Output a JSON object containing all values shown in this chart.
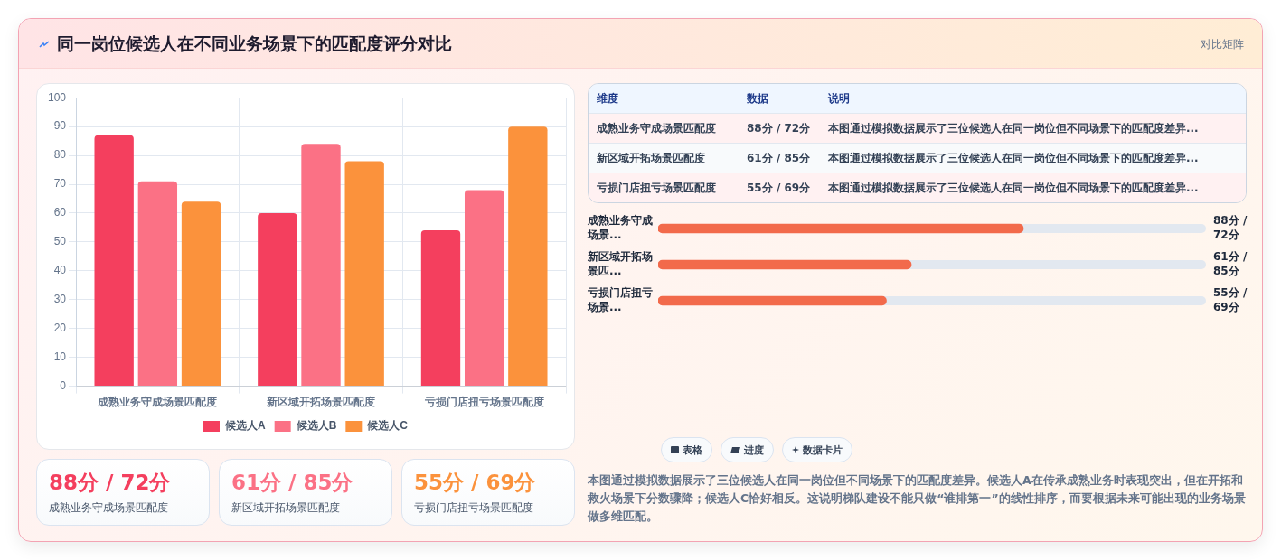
{
  "chart_data": [
    {
      "type": "other",
      "title": "同一岗位候选人在不同业务场景下的匹配度评分对比",
      "subtitle": "对比矩阵"
    },
    {
      "type": "bar",
      "categories": [
        "成熟业务守成场景匹配度",
        "新区域开拓场景匹配度",
        "亏损门店扭亏场景匹配度"
      ],
      "series": [
        {
          "name": "候选人A",
          "color": "#f43f5e",
          "values": [
            87,
            60,
            54
          ]
        },
        {
          "name": "候选人B",
          "color": "#fb7185",
          "values": [
            71,
            84,
            68
          ]
        },
        {
          "name": "候选人C",
          "color": "#fb923c",
          "values": [
            64,
            78,
            90
          ]
        }
      ],
      "ylim": [
        0,
        100
      ],
      "yticks": [
        0,
        10,
        20,
        30,
        40,
        50,
        60,
        70,
        80,
        90,
        100
      ],
      "grid": true,
      "legend": "bottom"
    },
    {
      "type": "other",
      "annotations": [
        "维度",
        "数据",
        "说明",
        "成熟业务守成场景匹配度",
        "88分 / 72分",
        "本图通过模拟数据展示了三位候选人在同一岗位但不同场景下的匹配度差异...",
        "新区域开拓场景匹配度",
        "61分 / 85分",
        "本图通过模拟数据展示了三位候选人在同一岗位但不同场景下的匹配度差异...",
        "亏损门店扭亏场景匹配度",
        "55分 / 69分",
        "本图通过模拟数据展示了三位候选人在同一岗位但不同场景下的匹配度差异..."
      ]
    },
    {
      "type": "bar",
      "orientation": "horizontal",
      "xlim": [
        0,
        132
      ],
      "tick_labels": false,
      "categories": [
        "成熟业务守成场景...",
        "新区域开拓场景匹...",
        "亏损门店扭亏场景..."
      ],
      "series": [
        {
          "color": "#f26a4b",
          "values": [
            88,
            61,
            55
          ],
          "value_labels": [
            "88分 / 72分",
            "61分 / 85分",
            "55分 / 69分"
          ]
        }
      ]
    },
    {
      "type": "other",
      "categories": [
        "成熟业务守成场景匹配度",
        "新区域开拓场景匹配度",
        "亏损门店扭亏场景匹配度"
      ],
      "annotations": [
        "88分 / 72分",
        "61分 / 85分",
        "55分 / 69分"
      ]
    },
    {
      "type": "other",
      "categories": [
        "表格",
        "进度",
        "数据卡片"
      ],
      "annotations": [
        "本图通过模拟数据展示了三位候选人在同一岗位但不同场景下的匹配度差异。候选人A在传承成熟业务时表现突出，但在开拓和救火场景下分数骤降；候选人C恰好相反。这说明梯队建设不能只做“谁排第一”的线性排序，而要根据未来可能出现的业务场景做多维匹配。"
      ]
    }
  ]
}
